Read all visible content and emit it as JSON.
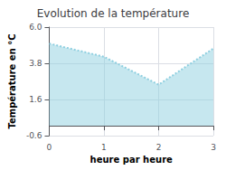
{
  "chart_data": {
    "type": "area",
    "title": "Evolution de la température",
    "xlabel": "heure par heure",
    "ylabel": "Température en °C",
    "x": [
      0,
      1,
      2,
      3
    ],
    "values": [
      5.0,
      4.2,
      2.5,
      4.7
    ],
    "color": "#8ecfe0",
    "xlim": [
      0,
      3
    ],
    "ylim": [
      -0.6,
      6.0
    ],
    "xticks": [
      0,
      1,
      2,
      3
    ],
    "yticks": [
      -0.6,
      1.6,
      3.8,
      {
        "value": 6.0,
        "label": "6.0"
      }
    ],
    "grid": true
  }
}
